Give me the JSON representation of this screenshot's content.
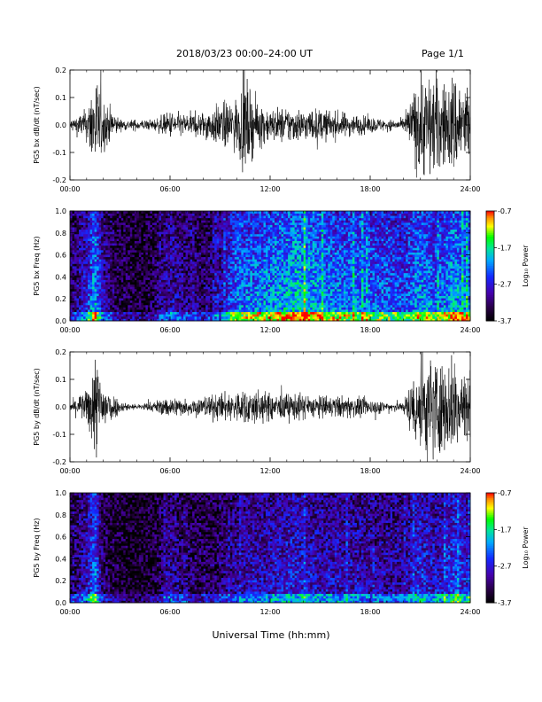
{
  "header": {
    "title": "2018/03/23  00:00–24:00 UT",
    "page": "Page 1/1"
  },
  "xaxis_label": "Universal Time (hh:mm)",
  "chart_data": [
    {
      "type": "line",
      "ylabel": "PG5 bx dB/dt (nT/sec)",
      "xlim": [
        0,
        24
      ],
      "ylim": [
        -0.2,
        0.2
      ],
      "xticks": [
        "00:00",
        "06:00",
        "12:00",
        "18:00",
        "24:00"
      ],
      "yticks": [
        "-0.2",
        "-0.1",
        "0.0",
        "0.1",
        "0.2"
      ],
      "series": [
        {
          "x": [
            0,
            1,
            1.5,
            2,
            3,
            4,
            5,
            6,
            7,
            8,
            9,
            10,
            10.5,
            11,
            12,
            13,
            14,
            15,
            16,
            17,
            18,
            19,
            20,
            21,
            22,
            22.5,
            23,
            24
          ],
          "amplitude": [
            0.02,
            0.06,
            0.2,
            0.1,
            0.02,
            0.02,
            0.02,
            0.05,
            0.04,
            0.05,
            0.08,
            0.1,
            0.18,
            0.1,
            0.06,
            0.07,
            0.06,
            0.06,
            0.05,
            0.04,
            0.03,
            0.02,
            0.02,
            0.2,
            0.2,
            0.15,
            0.2,
            0.15
          ]
        }
      ]
    },
    {
      "type": "heatmap",
      "ylabel": "PG5 bx Freq (Hz)",
      "xlim": [
        0,
        24
      ],
      "ylim": [
        0,
        1.0
      ],
      "xticks": [
        "00:00",
        "06:00",
        "12:00",
        "18:00",
        "24:00"
      ],
      "yticks": [
        "0.0",
        "0.2",
        "0.4",
        "0.6",
        "0.8",
        "1.0"
      ],
      "colorbar": {
        "label": "Log₁₀ Power",
        "ticks": [
          "-0.7",
          "-1.7",
          "-2.7",
          "-3.7"
        ],
        "range": [
          -3.7,
          -0.7
        ]
      },
      "activity_x": [
        0,
        1,
        1.5,
        2,
        3,
        4,
        5,
        6,
        7,
        8,
        9,
        10,
        11,
        12,
        13,
        14,
        15,
        16,
        17,
        18,
        19,
        20,
        21,
        22,
        23,
        24
      ],
      "activity": [
        0.2,
        0.4,
        0.7,
        0.3,
        0.15,
        0.1,
        0.15,
        0.35,
        0.25,
        0.2,
        0.3,
        0.6,
        0.6,
        0.65,
        0.7,
        0.75,
        0.65,
        0.6,
        0.6,
        0.55,
        0.55,
        0.5,
        0.65,
        0.55,
        0.7,
        0.6
      ]
    },
    {
      "type": "line",
      "ylabel": "PG5 by dB/dt (nT/sec)",
      "xlim": [
        0,
        24
      ],
      "ylim": [
        -0.2,
        0.2
      ],
      "xticks": [
        "00:00",
        "06:00",
        "12:00",
        "18:00",
        "24:00"
      ],
      "yticks": [
        "-0.2",
        "-0.1",
        "0.0",
        "0.1",
        "0.2"
      ],
      "series": [
        {
          "x": [
            0,
            1,
            1.5,
            2,
            3,
            4,
            5,
            6,
            7,
            8,
            9,
            10,
            11,
            12,
            13,
            14,
            15,
            16,
            17,
            18,
            19,
            20,
            21,
            22,
            22.5,
            23,
            24
          ],
          "amplitude": [
            0.02,
            0.06,
            0.2,
            0.1,
            0.02,
            0.01,
            0.02,
            0.04,
            0.03,
            0.04,
            0.05,
            0.06,
            0.07,
            0.05,
            0.05,
            0.05,
            0.04,
            0.04,
            0.04,
            0.03,
            0.02,
            0.02,
            0.2,
            0.2,
            0.15,
            0.2,
            0.15
          ]
        }
      ]
    },
    {
      "type": "heatmap",
      "ylabel": "PG5 by Freq (Hz)",
      "xlim": [
        0,
        24
      ],
      "ylim": [
        0,
        1.0
      ],
      "xticks": [
        "00:00",
        "06:00",
        "12:00",
        "18:00",
        "24:00"
      ],
      "yticks": [
        "0.0",
        "0.2",
        "0.4",
        "0.6",
        "0.8",
        "1.0"
      ],
      "colorbar": {
        "label": "Log₁₀ Power",
        "ticks": [
          "-0.7",
          "-1.7",
          "-2.7",
          "-3.7"
        ],
        "range": [
          -3.7,
          -0.7
        ]
      },
      "activity_x": [
        0,
        1,
        1.5,
        2,
        3,
        4,
        5,
        6,
        7,
        8,
        9,
        10,
        11,
        12,
        13,
        14,
        15,
        16,
        17,
        18,
        19,
        20,
        21,
        22,
        23,
        24
      ],
      "activity": [
        0.15,
        0.35,
        0.6,
        0.2,
        0.1,
        0.05,
        0.1,
        0.3,
        0.2,
        0.15,
        0.2,
        0.3,
        0.35,
        0.35,
        0.4,
        0.4,
        0.35,
        0.35,
        0.35,
        0.3,
        0.3,
        0.3,
        0.45,
        0.35,
        0.5,
        0.4
      ]
    }
  ]
}
